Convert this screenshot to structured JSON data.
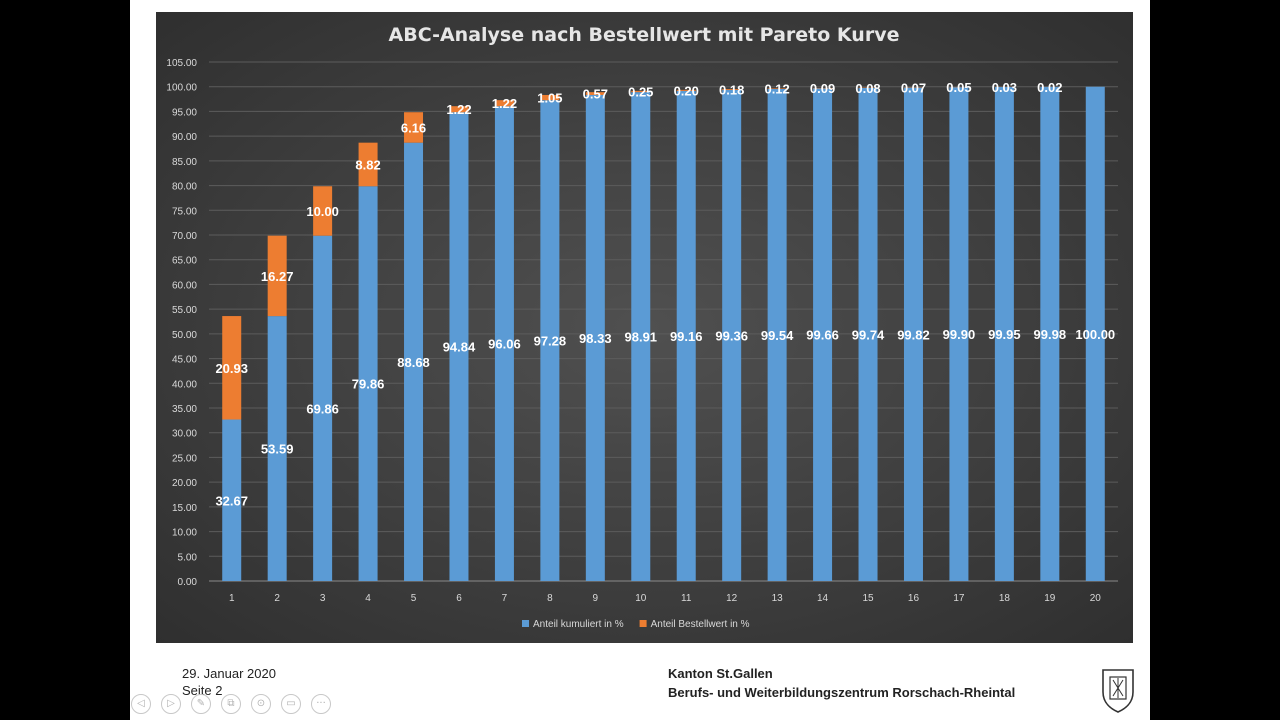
{
  "chart_data": {
    "type": "bar",
    "stacked": true,
    "title": "ABC-Analyse nach Bestellwert mit Pareto Kurve",
    "categories": [
      "1",
      "2",
      "3",
      "4",
      "5",
      "6",
      "7",
      "8",
      "9",
      "10",
      "11",
      "12",
      "13",
      "14",
      "15",
      "16",
      "17",
      "18",
      "19",
      "20"
    ],
    "series": [
      {
        "name": "Anteil kumuliert in %",
        "color": "#5b9bd5",
        "values": [
          32.67,
          53.59,
          69.86,
          79.86,
          88.68,
          94.84,
          96.06,
          97.28,
          98.33,
          98.91,
          99.16,
          99.36,
          99.54,
          99.66,
          99.74,
          99.82,
          99.9,
          99.95,
          99.98,
          100.0
        ],
        "labels": [
          "32.67",
          "53.59",
          "69.86",
          "79.86",
          "88.68",
          "94.84",
          "96.06",
          "97.28",
          "98.33",
          "98.91",
          "99.16",
          "99.36",
          "99.54",
          "99.66",
          "99.74",
          "99.82",
          "99.90",
          "99.95",
          "99.98",
          "100.00"
        ]
      },
      {
        "name": "Anteil Bestellwert in %",
        "color": "#ed7d31",
        "values": [
          20.93,
          16.27,
          10.0,
          8.82,
          6.16,
          1.22,
          1.22,
          1.05,
          0.57,
          0.25,
          0.2,
          0.18,
          0.12,
          0.09,
          0.08,
          0.07,
          0.05,
          0.03,
          0.02,
          null
        ],
        "labels": [
          "20.93",
          "16.27",
          "10.00",
          "8.82",
          "6.16",
          "1.22",
          "1.22",
          "1.05",
          "0.57",
          "0.25",
          "0.20",
          "0.18",
          "0.12",
          "0.09",
          "0.08",
          "0.07",
          "0.05",
          "0.03",
          "0.02",
          ""
        ]
      }
    ],
    "ylim": [
      0,
      105
    ],
    "yticks": [
      "0.00",
      "5.00",
      "10.00",
      "15.00",
      "20.00",
      "25.00",
      "30.00",
      "35.00",
      "40.00",
      "45.00",
      "50.00",
      "55.00",
      "60.00",
      "65.00",
      "70.00",
      "75.00",
      "80.00",
      "85.00",
      "90.00",
      "95.00",
      "100.00",
      "105.00"
    ],
    "grid": true,
    "legend": "bottom"
  },
  "footer": {
    "date": "29. Januar 2020",
    "page": "Seite 2",
    "org_line1": "Kanton St.Gallen",
    "org_line2": "Berufs- und Weiterbildungszentrum Rorschach-Rheintal"
  },
  "toolbar": {
    "icons": [
      "back-icon",
      "forward-icon",
      "pen-icon",
      "copy-icon",
      "zoom-icon",
      "screen-icon",
      "more-icon"
    ],
    "glyphs": [
      "◁",
      "▷",
      "✎",
      "⧉",
      "⊙",
      "▭",
      "···"
    ]
  }
}
